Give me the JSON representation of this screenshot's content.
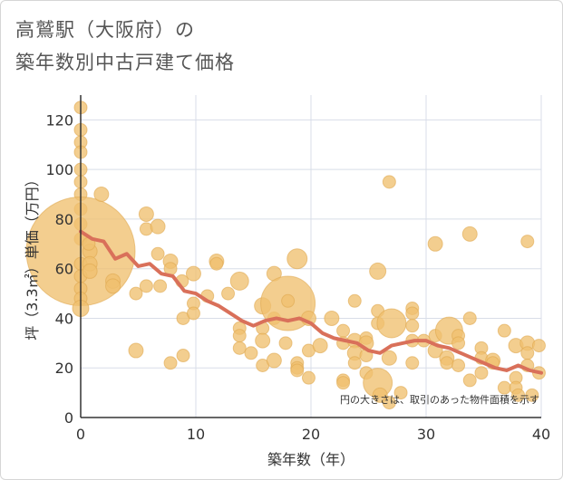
{
  "title_line1": "高鷲駅（大阪府）の",
  "title_line2": "築年数別中古戸建て価格",
  "note": "円の大きさは、取引のあった物件面積を示す",
  "colors": {
    "bubble": "#f0c070",
    "bubble_stroke": "#e0a850",
    "line": "#d9705a",
    "grid": "#d8dde8",
    "axis": "#333333"
  },
  "chart_data": {
    "type": "scatter",
    "xlabel": "築年数（年）",
    "ylabel": "坪（3.3㎡）単価（万円）",
    "xlim": [
      0,
      40
    ],
    "ylim": [
      0,
      130
    ],
    "x_ticks": [
      0,
      10,
      20,
      30,
      40
    ],
    "y_ticks": [
      0,
      20,
      40,
      60,
      80,
      100,
      120
    ],
    "bubbles": [
      {
        "x": 0,
        "y": 125,
        "r": 7
      },
      {
        "x": 0,
        "y": 116,
        "r": 7
      },
      {
        "x": 0,
        "y": 111,
        "r": 7
      },
      {
        "x": 0,
        "y": 107,
        "r": 7
      },
      {
        "x": 0,
        "y": 100,
        "r": 7
      },
      {
        "x": 0,
        "y": 95,
        "r": 7
      },
      {
        "x": 0,
        "y": 90,
        "r": 7
      },
      {
        "x": 0,
        "y": 84,
        "r": 7
      },
      {
        "x": 0,
        "y": 78,
        "r": 7
      },
      {
        "x": 0,
        "y": 72,
        "r": 7
      },
      {
        "x": 0,
        "y": 67,
        "r": 60
      },
      {
        "x": 0,
        "y": 62,
        "r": 7
      },
      {
        "x": 0,
        "y": 57,
        "r": 7
      },
      {
        "x": 0,
        "y": 52,
        "r": 7
      },
      {
        "x": 0,
        "y": 48,
        "r": 7
      },
      {
        "x": 0,
        "y": 44,
        "r": 9
      },
      {
        "x": 0.8,
        "y": 67,
        "r": 8
      },
      {
        "x": 0.8,
        "y": 62,
        "r": 8
      },
      {
        "x": 0.8,
        "y": 59,
        "r": 8
      },
      {
        "x": 0.7,
        "y": 70,
        "r": 7
      },
      {
        "x": 1.8,
        "y": 90,
        "r": 8
      },
      {
        "x": 2.8,
        "y": 55,
        "r": 8
      },
      {
        "x": 2.8,
        "y": 53,
        "r": 8
      },
      {
        "x": 4.8,
        "y": 50,
        "r": 7
      },
      {
        "x": 4.8,
        "y": 27,
        "r": 8
      },
      {
        "x": 5.7,
        "y": 82,
        "r": 8
      },
      {
        "x": 5.7,
        "y": 76,
        "r": 7
      },
      {
        "x": 5.7,
        "y": 53,
        "r": 7
      },
      {
        "x": 6.7,
        "y": 77,
        "r": 8
      },
      {
        "x": 6.7,
        "y": 66,
        "r": 7
      },
      {
        "x": 6.9,
        "y": 53,
        "r": 7
      },
      {
        "x": 7.8,
        "y": 63,
        "r": 8
      },
      {
        "x": 7.8,
        "y": 60,
        "r": 7
      },
      {
        "x": 7.8,
        "y": 22,
        "r": 7
      },
      {
        "x": 8.8,
        "y": 55,
        "r": 7
      },
      {
        "x": 8.9,
        "y": 40,
        "r": 7
      },
      {
        "x": 8.9,
        "y": 25,
        "r": 7
      },
      {
        "x": 9.8,
        "y": 58,
        "r": 8
      },
      {
        "x": 9.8,
        "y": 46,
        "r": 7
      },
      {
        "x": 9.8,
        "y": 42,
        "r": 7
      },
      {
        "x": 11.8,
        "y": 63,
        "r": 8
      },
      {
        "x": 11.8,
        "y": 62,
        "r": 7
      },
      {
        "x": 11,
        "y": 49,
        "r": 7
      },
      {
        "x": 12.8,
        "y": 50,
        "r": 7
      },
      {
        "x": 13.8,
        "y": 55,
        "r": 10
      },
      {
        "x": 13.8,
        "y": 36,
        "r": 7
      },
      {
        "x": 13.8,
        "y": 33,
        "r": 7
      },
      {
        "x": 13.8,
        "y": 28,
        "r": 7
      },
      {
        "x": 14.8,
        "y": 26,
        "r": 7
      },
      {
        "x": 15.8,
        "y": 45,
        "r": 9
      },
      {
        "x": 15.8,
        "y": 36,
        "r": 7
      },
      {
        "x": 15.8,
        "y": 31,
        "r": 8
      },
      {
        "x": 15.8,
        "y": 21,
        "r": 7
      },
      {
        "x": 16.8,
        "y": 58,
        "r": 8
      },
      {
        "x": 16.8,
        "y": 40,
        "r": 7
      },
      {
        "x": 16.8,
        "y": 23,
        "r": 8
      },
      {
        "x": 18,
        "y": 46,
        "r": 30
      },
      {
        "x": 18,
        "y": 47,
        "r": 7
      },
      {
        "x": 17.8,
        "y": 30,
        "r": 7
      },
      {
        "x": 18.8,
        "y": 64,
        "r": 11
      },
      {
        "x": 18.8,
        "y": 22,
        "r": 7
      },
      {
        "x": 18.8,
        "y": 20,
        "r": 7
      },
      {
        "x": 18.8,
        "y": 19,
        "r": 7
      },
      {
        "x": 19.8,
        "y": 40,
        "r": 8
      },
      {
        "x": 19.8,
        "y": 27,
        "r": 7
      },
      {
        "x": 19.8,
        "y": 16,
        "r": 7
      },
      {
        "x": 20.8,
        "y": 29,
        "r": 8
      },
      {
        "x": 21.8,
        "y": 40,
        "r": 8
      },
      {
        "x": 22.8,
        "y": 35,
        "r": 7
      },
      {
        "x": 22.8,
        "y": 30,
        "r": 7
      },
      {
        "x": 22.8,
        "y": 15,
        "r": 7
      },
      {
        "x": 22.8,
        "y": 14,
        "r": 7
      },
      {
        "x": 23.8,
        "y": 47,
        "r": 7
      },
      {
        "x": 23.8,
        "y": 31,
        "r": 8
      },
      {
        "x": 23.8,
        "y": 26,
        "r": 8
      },
      {
        "x": 23.8,
        "y": 22,
        "r": 7
      },
      {
        "x": 24.8,
        "y": 32,
        "r": 7
      },
      {
        "x": 24.8,
        "y": 30,
        "r": 8
      },
      {
        "x": 24.8,
        "y": 25,
        "r": 7
      },
      {
        "x": 24.8,
        "y": 18,
        "r": 7
      },
      {
        "x": 25.8,
        "y": 59,
        "r": 9
      },
      {
        "x": 25.8,
        "y": 43,
        "r": 7
      },
      {
        "x": 25.8,
        "y": 38,
        "r": 7
      },
      {
        "x": 25.8,
        "y": 14,
        "r": 16
      },
      {
        "x": 26,
        "y": 9,
        "r": 8
      },
      {
        "x": 26.8,
        "y": 95,
        "r": 7
      },
      {
        "x": 27,
        "y": 38,
        "r": 16
      },
      {
        "x": 26.8,
        "y": 6,
        "r": 7
      },
      {
        "x": 26.8,
        "y": 24,
        "r": 8
      },
      {
        "x": 27.8,
        "y": 10,
        "r": 7
      },
      {
        "x": 28.8,
        "y": 44,
        "r": 7
      },
      {
        "x": 28.8,
        "y": 42,
        "r": 7
      },
      {
        "x": 28.8,
        "y": 37,
        "r": 7
      },
      {
        "x": 28.8,
        "y": 31,
        "r": 7
      },
      {
        "x": 28.8,
        "y": 22,
        "r": 7
      },
      {
        "x": 29.8,
        "y": 31,
        "r": 7
      },
      {
        "x": 30.8,
        "y": 70,
        "r": 8
      },
      {
        "x": 30.8,
        "y": 33,
        "r": 7
      },
      {
        "x": 30.8,
        "y": 27,
        "r": 8
      },
      {
        "x": 32,
        "y": 35,
        "r": 15
      },
      {
        "x": 31.8,
        "y": 24,
        "r": 8
      },
      {
        "x": 31.8,
        "y": 22,
        "r": 7
      },
      {
        "x": 32.8,
        "y": 33,
        "r": 7
      },
      {
        "x": 32.8,
        "y": 30,
        "r": 7
      },
      {
        "x": 32.8,
        "y": 21,
        "r": 7
      },
      {
        "x": 33.8,
        "y": 74,
        "r": 8
      },
      {
        "x": 33.8,
        "y": 40,
        "r": 7
      },
      {
        "x": 33.8,
        "y": 15,
        "r": 7
      },
      {
        "x": 34.8,
        "y": 28,
        "r": 7
      },
      {
        "x": 34.8,
        "y": 24,
        "r": 7
      },
      {
        "x": 34.8,
        "y": 18,
        "r": 7
      },
      {
        "x": 35.8,
        "y": 23,
        "r": 8
      },
      {
        "x": 35.8,
        "y": 22,
        "r": 7
      },
      {
        "x": 36.8,
        "y": 35,
        "r": 7
      },
      {
        "x": 36.8,
        "y": 12,
        "r": 7
      },
      {
        "x": 37.8,
        "y": 29,
        "r": 8
      },
      {
        "x": 37.8,
        "y": 16,
        "r": 7
      },
      {
        "x": 37.8,
        "y": 12,
        "r": 7
      },
      {
        "x": 38.8,
        "y": 71,
        "r": 7
      },
      {
        "x": 38.8,
        "y": 30,
        "r": 8
      },
      {
        "x": 38.8,
        "y": 26,
        "r": 7
      },
      {
        "x": 38.8,
        "y": 21,
        "r": 7
      },
      {
        "x": 39.8,
        "y": 29,
        "r": 7
      },
      {
        "x": 39.8,
        "y": 18,
        "r": 7
      },
      {
        "x": 39.2,
        "y": 9,
        "r": 7
      },
      {
        "x": 38,
        "y": 9,
        "r": 7
      }
    ],
    "trend": {
      "x": [
        0,
        1,
        2,
        3,
        4,
        5,
        6,
        7,
        8,
        9,
        10,
        11,
        12,
        13,
        14,
        15,
        16,
        17,
        18,
        19,
        20,
        21,
        22,
        23,
        24,
        25,
        26,
        27,
        28,
        29,
        30,
        31,
        32,
        33,
        34,
        35,
        36,
        37,
        38,
        39,
        40
      ],
      "y": [
        75,
        72,
        71,
        64,
        66,
        61,
        62,
        58,
        57,
        51,
        50,
        47,
        45,
        42,
        39,
        37,
        39,
        40,
        39,
        40,
        38,
        34,
        32,
        31,
        30,
        27,
        26,
        29,
        30,
        31,
        31,
        29,
        28,
        26,
        24,
        22,
        20,
        19,
        21,
        19,
        18
      ]
    }
  }
}
